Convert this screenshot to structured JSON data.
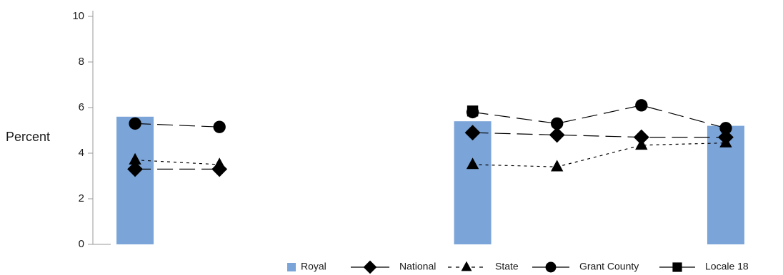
{
  "chart_data": {
    "type": "bar",
    "ylabel": "Percent",
    "ylim": [
      0,
      10
    ],
    "yticks": [
      0,
      2,
      4,
      6,
      8,
      10
    ],
    "categories": [
      "",
      "",
      "",
      "",
      "",
      "",
      "",
      ""
    ],
    "bars": {
      "name": "Royal",
      "color": "#7ba4d8",
      "values": [
        5.6,
        null,
        null,
        null,
        5.4,
        null,
        null,
        5.2
      ]
    },
    "series": [
      {
        "name": "National",
        "marker": "diamond",
        "dash": "long-dash",
        "segments": [
          [
            [
              0,
              3.3
            ],
            [
              1,
              3.3
            ]
          ],
          [
            [
              4,
              4.9
            ],
            [
              5,
              4.8
            ],
            [
              6,
              4.7
            ],
            [
              7,
              4.7
            ]
          ]
        ]
      },
      {
        "name": "State",
        "marker": "triangle",
        "dash": "dotted",
        "segments": [
          [
            [
              0,
              3.7
            ],
            [
              1,
              3.5
            ]
          ],
          [
            [
              4,
              3.5
            ],
            [
              5,
              3.4
            ],
            [
              6,
              4.35
            ],
            [
              7,
              4.45
            ]
          ]
        ]
      },
      {
        "name": "Grant County",
        "marker": "circle",
        "dash": "long-dash",
        "segments": [
          [
            [
              0,
              5.3
            ],
            [
              1,
              5.15
            ]
          ],
          [
            [
              4,
              5.8
            ],
            [
              5,
              5.3
            ],
            [
              6,
              6.1
            ],
            [
              7,
              5.1
            ]
          ]
        ]
      },
      {
        "name": "Locale 18",
        "marker": "square",
        "dash": "solid",
        "segments": [
          [
            [
              4,
              5.85
            ]
          ]
        ]
      }
    ],
    "legend": {
      "position": "bottom-right",
      "items": [
        "Royal",
        "National",
        "State",
        "Grant County",
        "Locale 18"
      ]
    }
  }
}
